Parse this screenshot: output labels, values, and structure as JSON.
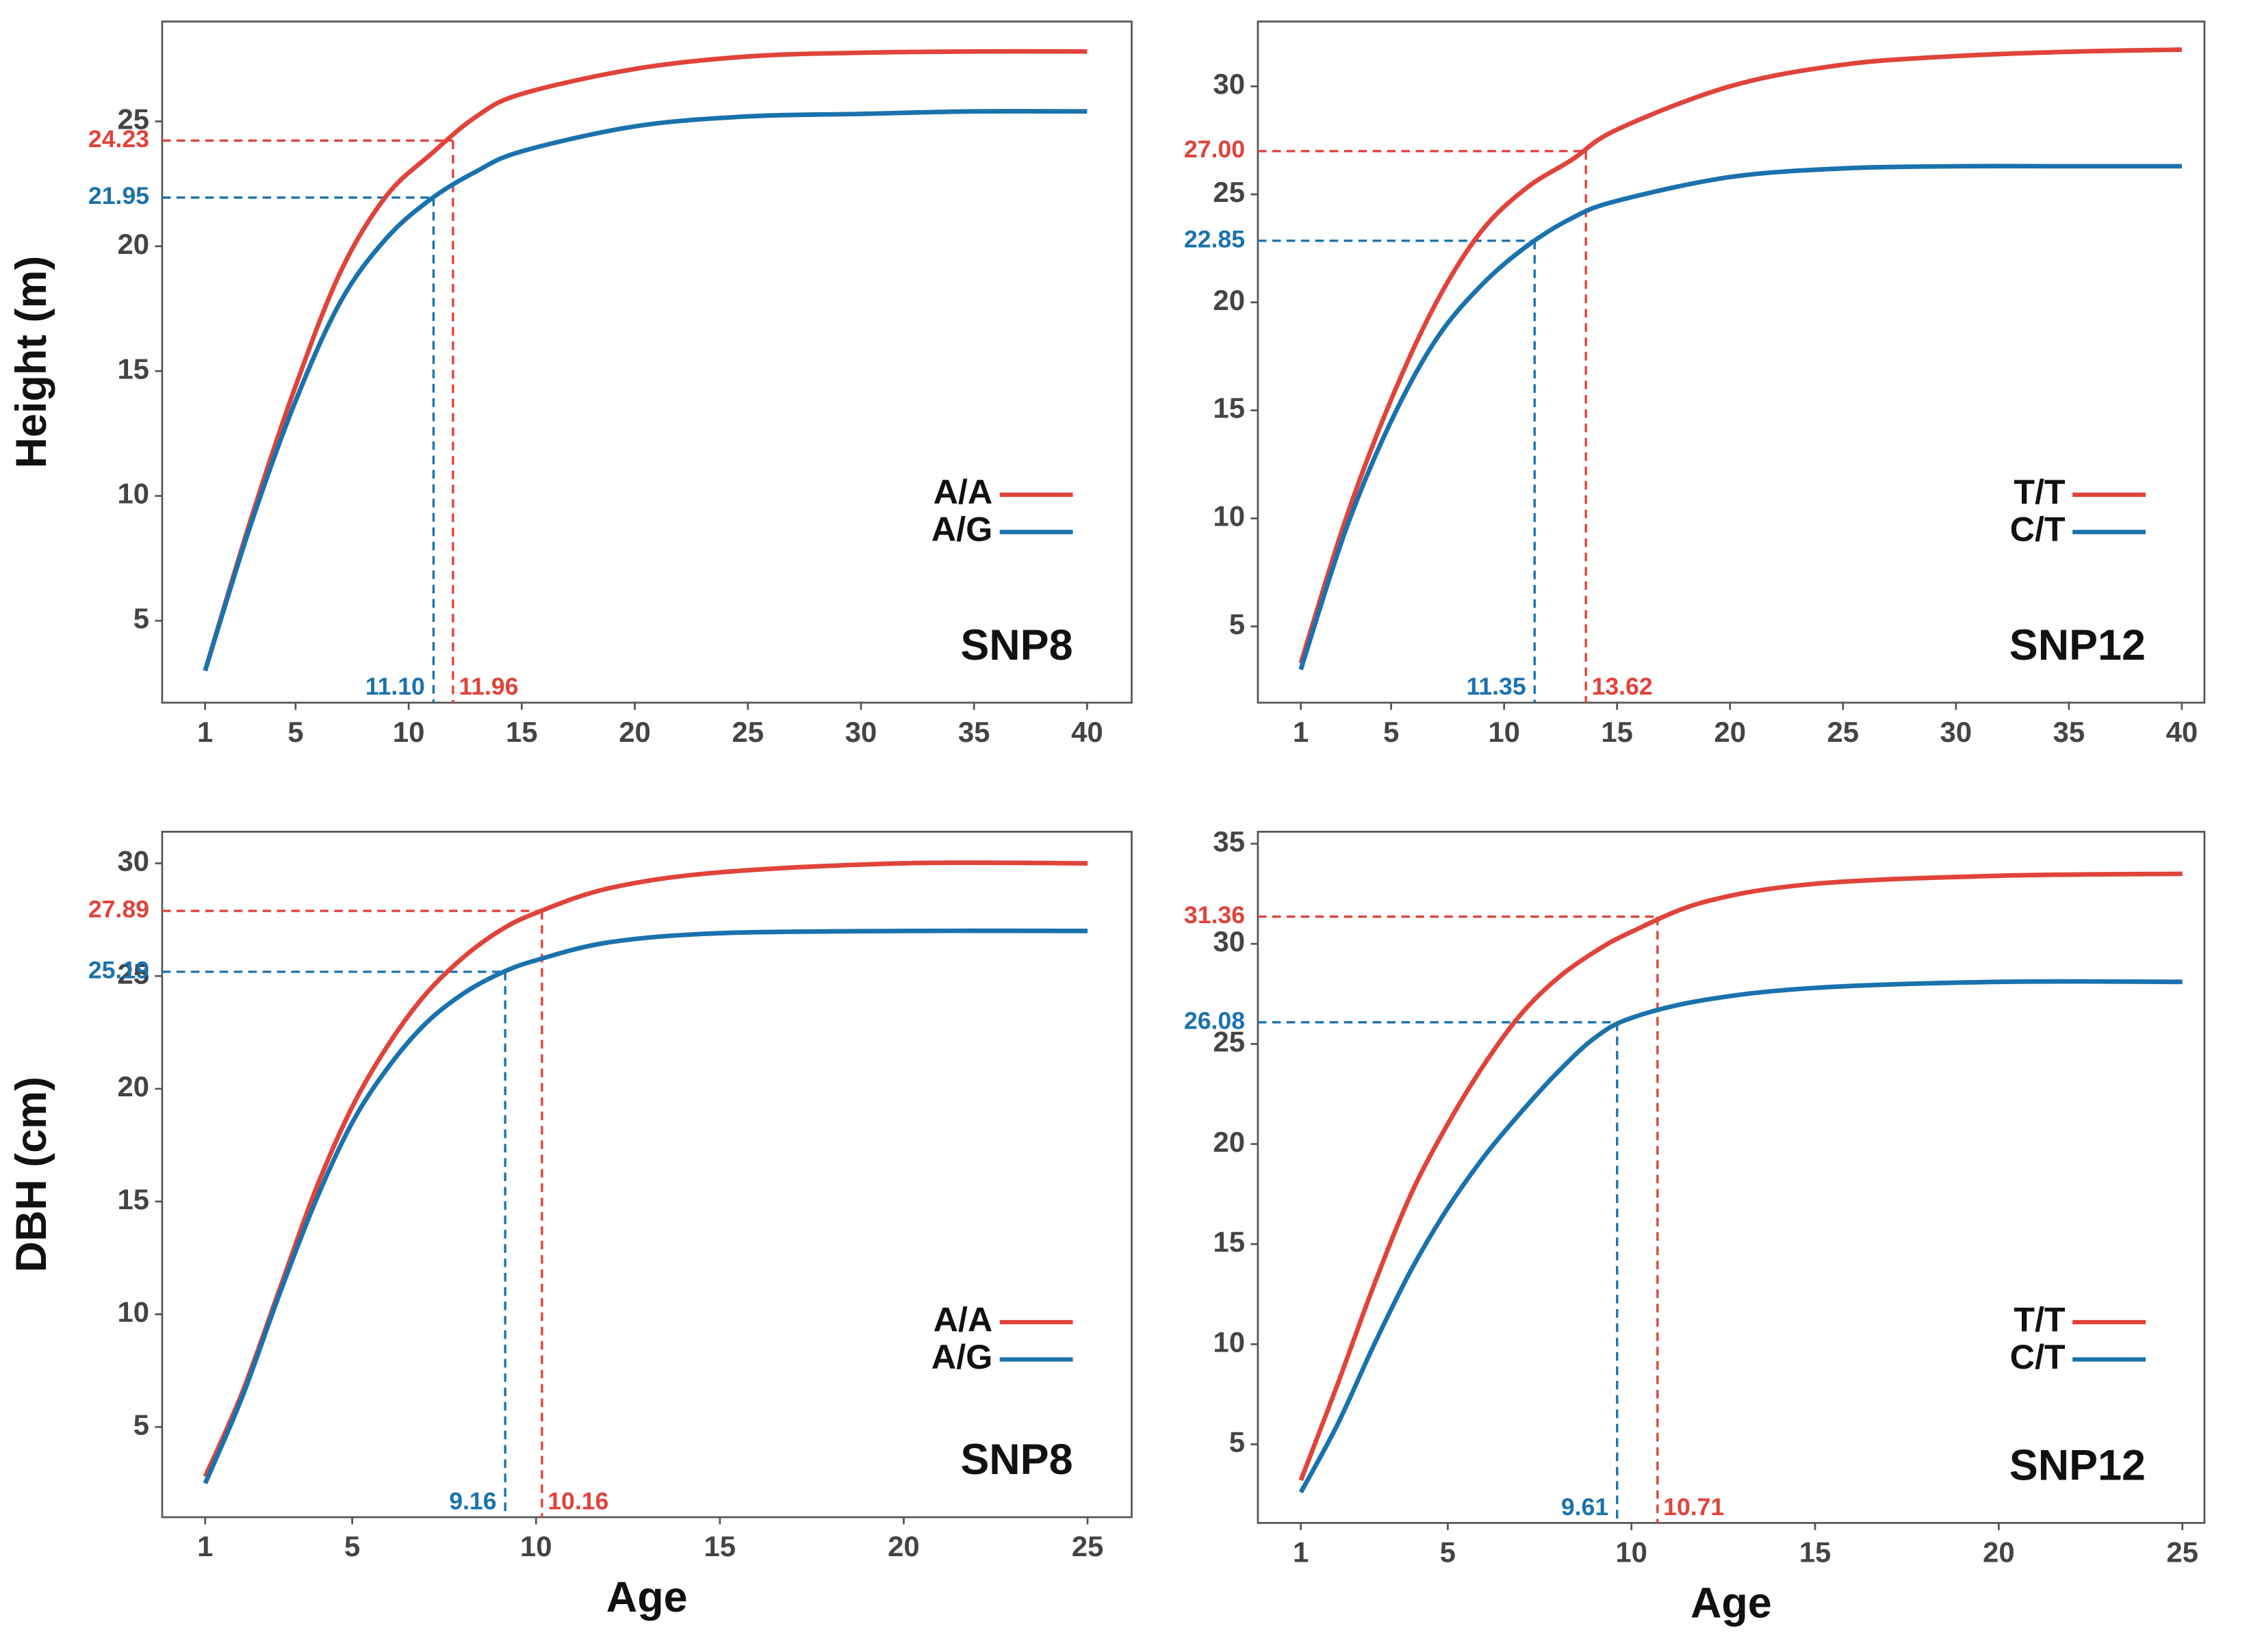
{
  "chart_data": [
    {
      "type": "line",
      "ylabel": "Height (m)",
      "annotation": "SNP8",
      "legend": "right",
      "xlim": [
        -0.9,
        41.97
      ],
      "ylim": [
        1.72,
        29.0
      ],
      "xticks": [
        1,
        5,
        10,
        15,
        20,
        25,
        30,
        35,
        40
      ],
      "yticks": [
        5,
        10,
        15,
        20,
        25
      ],
      "x": [
        1,
        3,
        5,
        7,
        9,
        11,
        13,
        15,
        20,
        25,
        30,
        35,
        40
      ],
      "series": [
        {
          "name": "A/A",
          "color": "#e0433a",
          "values": [
            3,
            9,
            14.4,
            19,
            22,
            23.7,
            25.2,
            26.1,
            27.1,
            27.6,
            27.75,
            27.8,
            27.8
          ],
          "marker": {
            "x": 11.96,
            "y": 24.23,
            "x_label": "11.96",
            "y_label": "24.23"
          }
        },
        {
          "name": "A/G",
          "color": "#1a72ad",
          "values": [
            3,
            8.8,
            13.8,
            17.8,
            20.3,
            21.9,
            23.0,
            23.8,
            24.8,
            25.2,
            25.3,
            25.4,
            25.4
          ],
          "marker": {
            "x": 11.1,
            "y": 21.95,
            "x_label": "11.10",
            "y_label": "21.95"
          }
        }
      ]
    },
    {
      "type": "line",
      "annotation": "SNP12",
      "legend": "right",
      "xlim": [
        -0.9,
        41.0
      ],
      "ylim": [
        1.47,
        33.0
      ],
      "xticks": [
        1,
        5,
        10,
        15,
        20,
        25,
        30,
        35,
        40
      ],
      "yticks": [
        5,
        10,
        15,
        20,
        25,
        30
      ],
      "x": [
        1,
        3,
        5,
        7,
        9,
        11,
        13,
        15,
        20,
        25,
        30,
        35,
        40
      ],
      "series": [
        {
          "name": "T/T",
          "color": "#e0433a",
          "values": [
            3.3,
            10,
            15.5,
            20,
            23.3,
            25.3,
            26.6,
            28,
            30,
            31,
            31.4,
            31.6,
            31.7
          ],
          "marker": {
            "x": 13.62,
            "y": 27,
            "x_label": "13.62",
            "y_label": "27.00"
          }
        },
        {
          "name": "C/T",
          "color": "#1a72ad",
          "values": [
            3,
            9.5,
            14.5,
            18.3,
            20.8,
            22.6,
            23.9,
            24.7,
            25.8,
            26.2,
            26.3,
            26.3,
            26.3
          ],
          "marker": {
            "x": 11.35,
            "y": 22.85,
            "x_label": "11.35",
            "y_label": "22.85"
          }
        }
      ]
    },
    {
      "type": "line",
      "ylabel": "DBH (cm)",
      "xlabel": "Age",
      "annotation": "SNP8",
      "legend": "right",
      "xlim": [
        -0.17,
        26.2
      ],
      "ylim": [
        1.0,
        31.4
      ],
      "xticks": [
        1,
        5,
        10,
        15,
        20,
        25
      ],
      "yticks": [
        5,
        10,
        15,
        20,
        25,
        30
      ],
      "x": [
        1,
        2,
        3,
        4,
        5,
        6,
        7,
        8,
        9,
        10,
        12,
        15,
        20,
        25
      ],
      "series": [
        {
          "name": "A/A",
          "color": "#e0433a",
          "values": [
            2.8,
            6.5,
            11,
            15.5,
            19.2,
            22,
            24.2,
            25.8,
            27,
            27.8,
            28.9,
            29.6,
            30,
            30
          ],
          "marker": {
            "x": 10.16,
            "y": 27.89,
            "x_label": "10.16",
            "y_label": "27.89"
          }
        },
        {
          "name": "A/G",
          "color": "#1a72ad",
          "values": [
            2.5,
            6.3,
            10.8,
            15,
            18.5,
            21,
            22.9,
            24.2,
            25.1,
            25.7,
            26.5,
            26.9,
            27.0,
            27.0
          ],
          "marker": {
            "x": 9.16,
            "y": 25.19,
            "x_label": "9.16",
            "y_label": "25.19"
          }
        }
      ]
    },
    {
      "type": "line",
      "xlabel": "Age",
      "annotation": "SNP12",
      "legend": "right",
      "xlim": [
        -0.17,
        25.6
      ],
      "ylim": [
        1.07,
        35.6
      ],
      "xticks": [
        1,
        5,
        10,
        15,
        20,
        25
      ],
      "yticks": [
        5,
        10,
        15,
        20,
        25,
        30,
        35
      ],
      "x": [
        1,
        2,
        3,
        4,
        5,
        6,
        7,
        8,
        9,
        10,
        12,
        15,
        20,
        25
      ],
      "series": [
        {
          "name": "T/T",
          "color": "#e0433a",
          "values": [
            3.2,
            8,
            13,
            17.5,
            21,
            24,
            26.5,
            28.3,
            29.6,
            30.6,
            32.1,
            33,
            33.4,
            33.5
          ],
          "marker": {
            "x": 10.71,
            "y": 31.36,
            "x_label": "10.71",
            "y_label": "31.36"
          }
        },
        {
          "name": "C/T",
          "color": "#1a72ad",
          "values": [
            2.6,
            6,
            10,
            13.7,
            16.8,
            19.4,
            21.6,
            23.6,
            25.3,
            26.3,
            27.2,
            27.8,
            28.1,
            28.1
          ],
          "marker": {
            "x": 9.61,
            "y": 26.08,
            "x_label": "9.61",
            "y_label": "26.08"
          }
        }
      ]
    }
  ]
}
